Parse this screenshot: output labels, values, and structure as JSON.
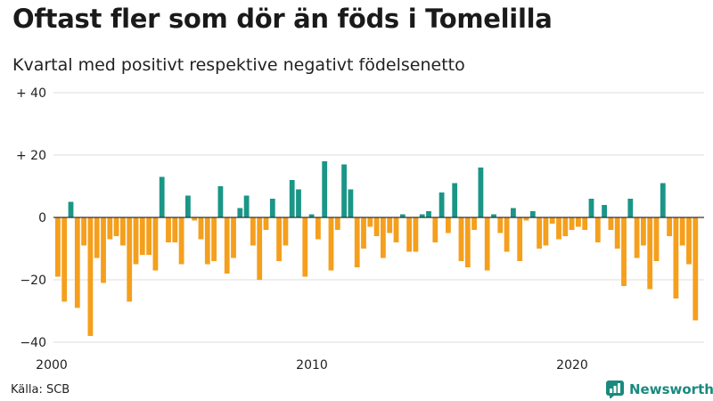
{
  "title": "Oftast fler som dör än föds i Tomelilla",
  "subtitle": "Kvartal med positivt respektive negativt födelsenetto",
  "source": "Källa: SCB",
  "brand": "Newsworthy",
  "colors": {
    "positive": "#1a9687",
    "negative": "#f59f1c",
    "grid": "#dddddd",
    "zero": "#333333",
    "brand": "#1a8a7e"
  },
  "chart_data": {
    "type": "bar",
    "start_year": 2000,
    "quarters_per_year": 4,
    "ylim": [
      -40,
      40
    ],
    "y_ticks": [
      {
        "value": 40,
        "label": "+ 40"
      },
      {
        "value": 20,
        "label": "+ 20"
      },
      {
        "value": 0,
        "label": "0"
      },
      {
        "value": -20,
        "label": "−20"
      },
      {
        "value": -40,
        "label": "−40"
      }
    ],
    "x_ticks": [
      {
        "year": 2000,
        "label": "2000"
      },
      {
        "year": 2010,
        "label": "2010"
      },
      {
        "year": 2020,
        "label": "2020"
      }
    ],
    "values": [
      -19,
      -27,
      5,
      -29,
      -9,
      -38,
      -13,
      -21,
      -7,
      -6,
      -9,
      -27,
      -15,
      -12,
      -12,
      -17,
      13,
      -8,
      -8,
      -15,
      7,
      -1,
      -7,
      -15,
      -14,
      10,
      -18,
      -13,
      3,
      7,
      -9,
      -20,
      -4,
      6,
      -14,
      -9,
      12,
      9,
      -19,
      1,
      -7,
      18,
      -17,
      -4,
      17,
      9,
      -16,
      -10,
      -3,
      -6,
      -13,
      -5,
      -8,
      1,
      -11,
      -11,
      1,
      2,
      -8,
      8,
      -5,
      11,
      -14,
      -16,
      -4,
      16,
      -17,
      1,
      -5,
      -11,
      3,
      -14,
      -1,
      2,
      -10,
      -9,
      -2,
      -7,
      -6,
      -4,
      -3,
      -4,
      6,
      -8,
      4,
      -4,
      -10,
      -22,
      6,
      -13,
      -9,
      -23,
      -14,
      11,
      -6,
      -26,
      -9,
      -15,
      -33
    ]
  }
}
